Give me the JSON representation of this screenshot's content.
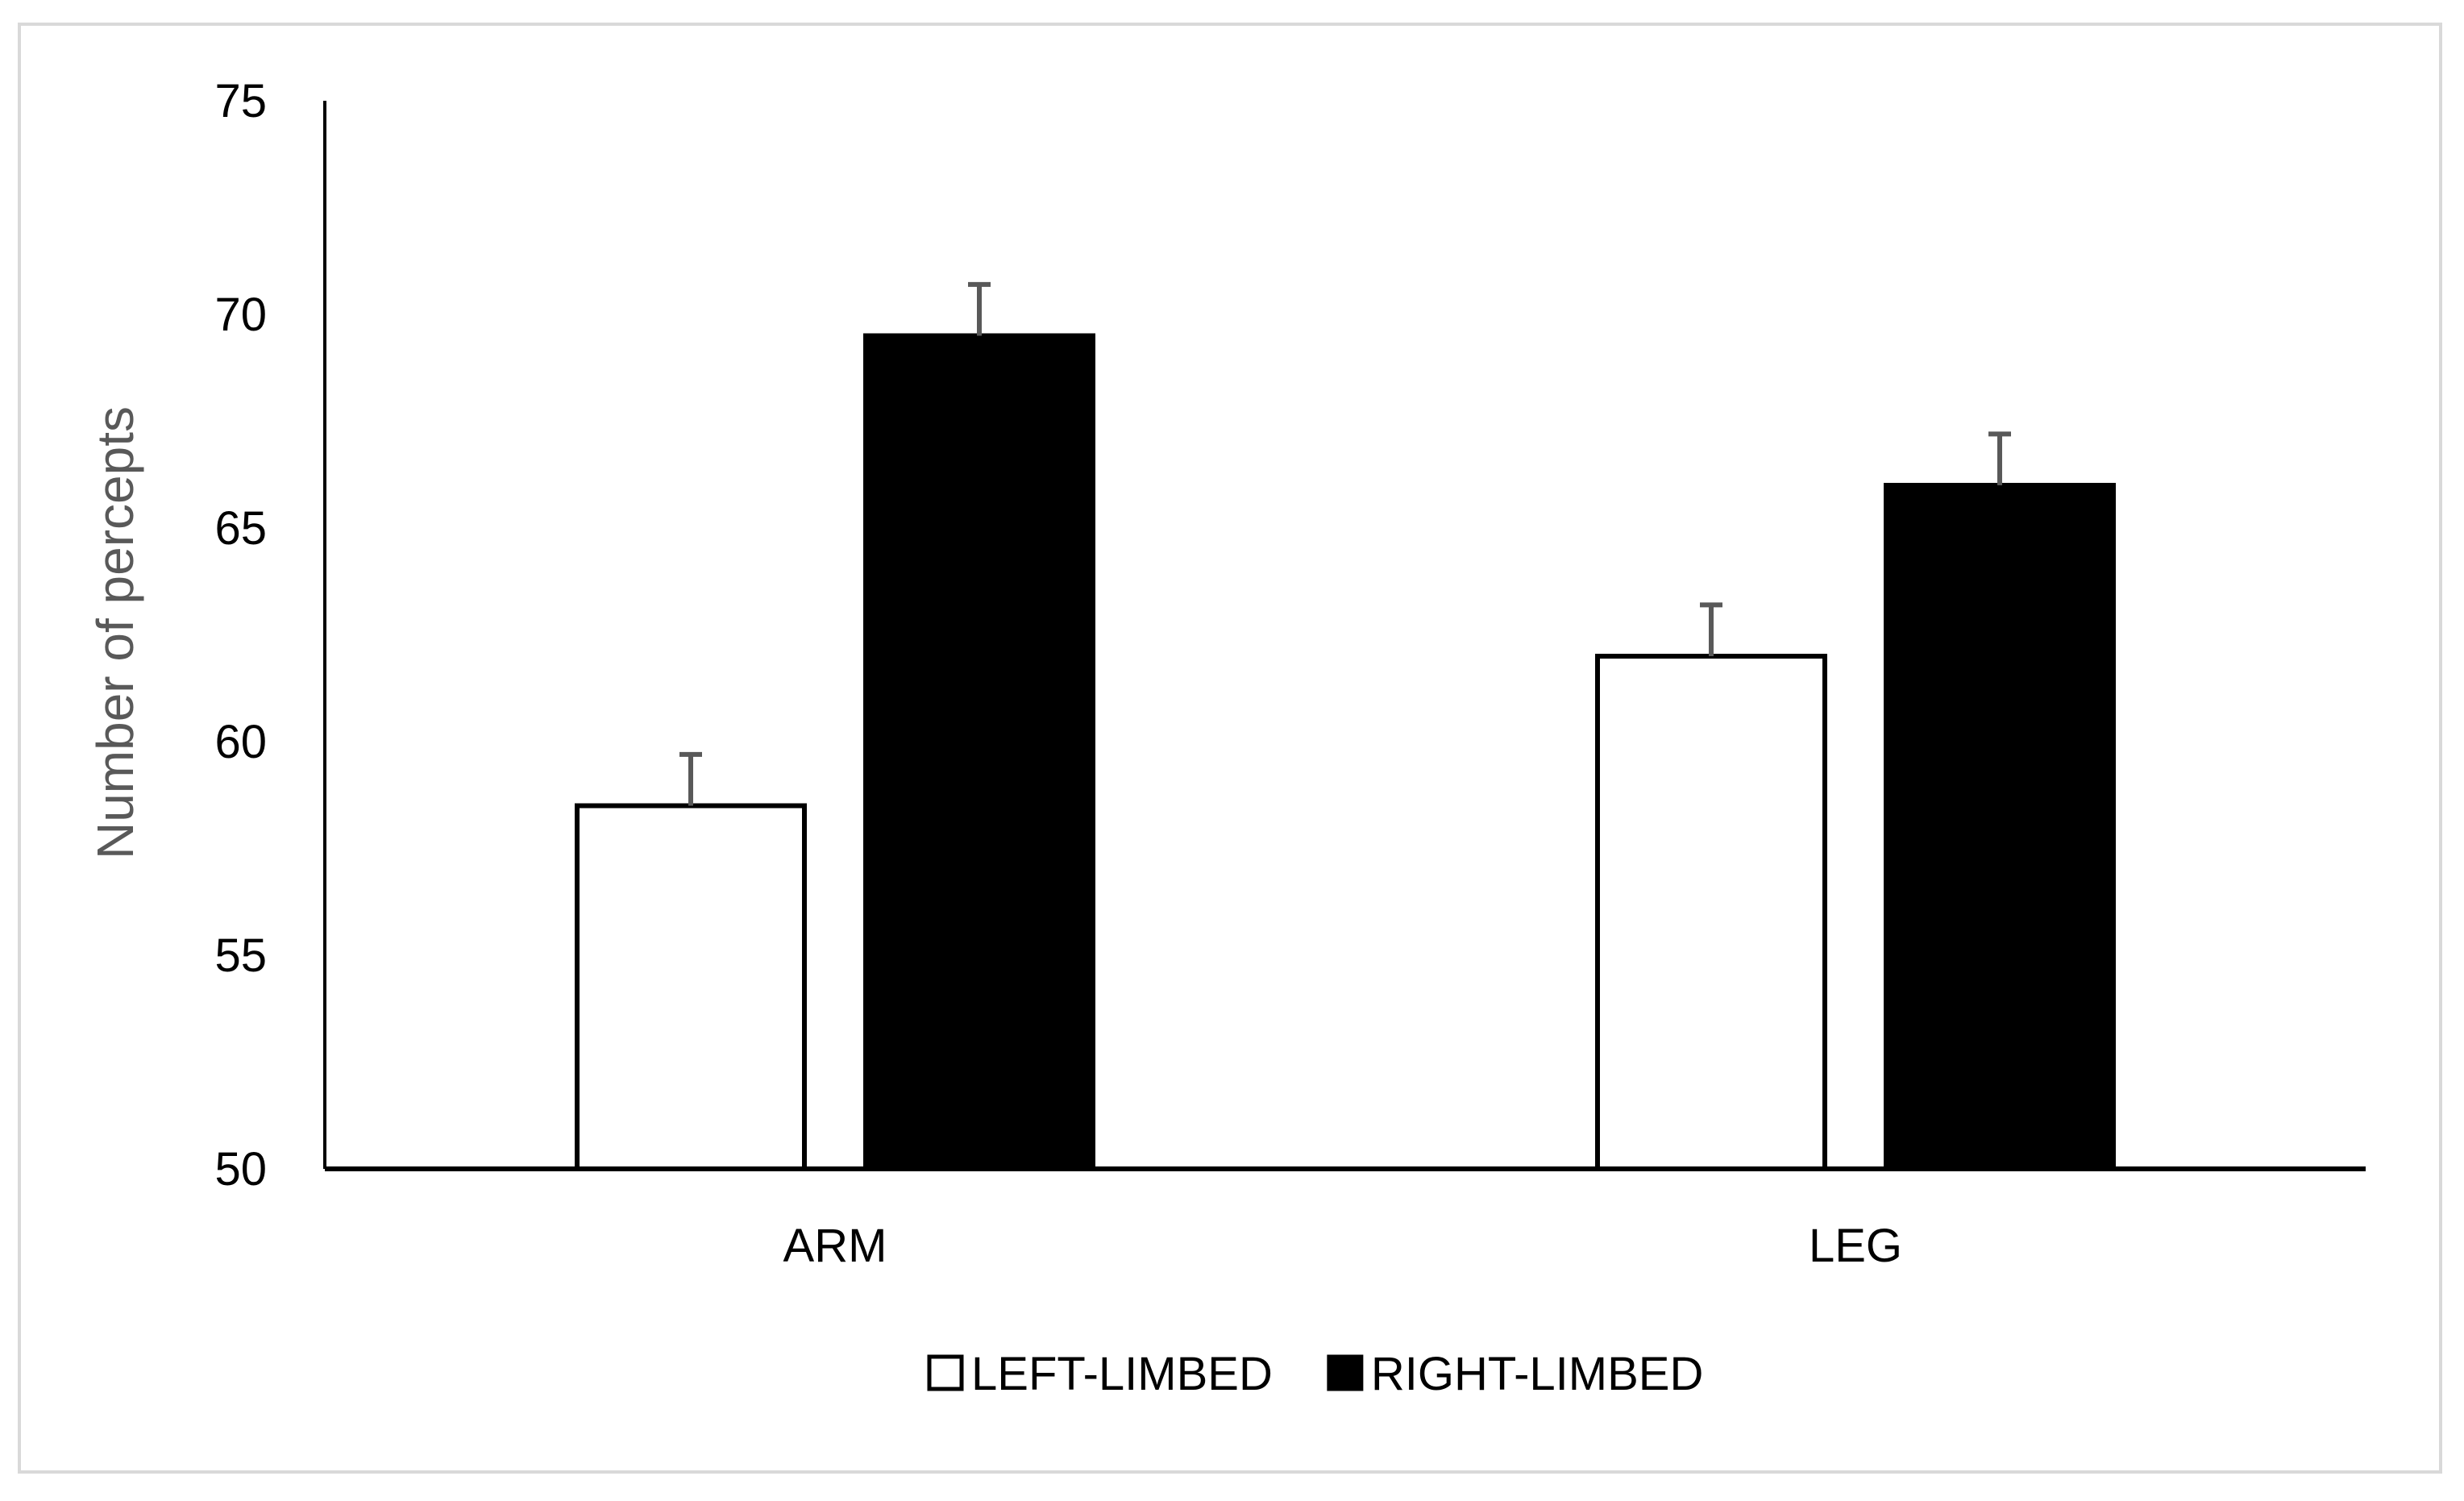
{
  "chart_data": {
    "type": "bar",
    "title": "",
    "xlabel": "",
    "ylabel": "Number of percepts",
    "ylim": [
      50,
      75
    ],
    "yticks": [
      50,
      55,
      60,
      65,
      70,
      75
    ],
    "categories": [
      "ARM",
      "LEG"
    ],
    "series": [
      {
        "name": "LEFT-LIMBED",
        "values": [
          58.5,
          62
        ],
        "error": [
          1.2,
          1.2
        ],
        "color": "#ffffff",
        "stroke": "#000000"
      },
      {
        "name": "RIGHT-LIMBED",
        "values": [
          69.5,
          66
        ],
        "error": [
          1.2,
          1.2
        ],
        "color": "#000000",
        "stroke": "#000000"
      }
    ],
    "error_bar_color": "#595959",
    "grid": false,
    "legend_position": "bottom"
  }
}
